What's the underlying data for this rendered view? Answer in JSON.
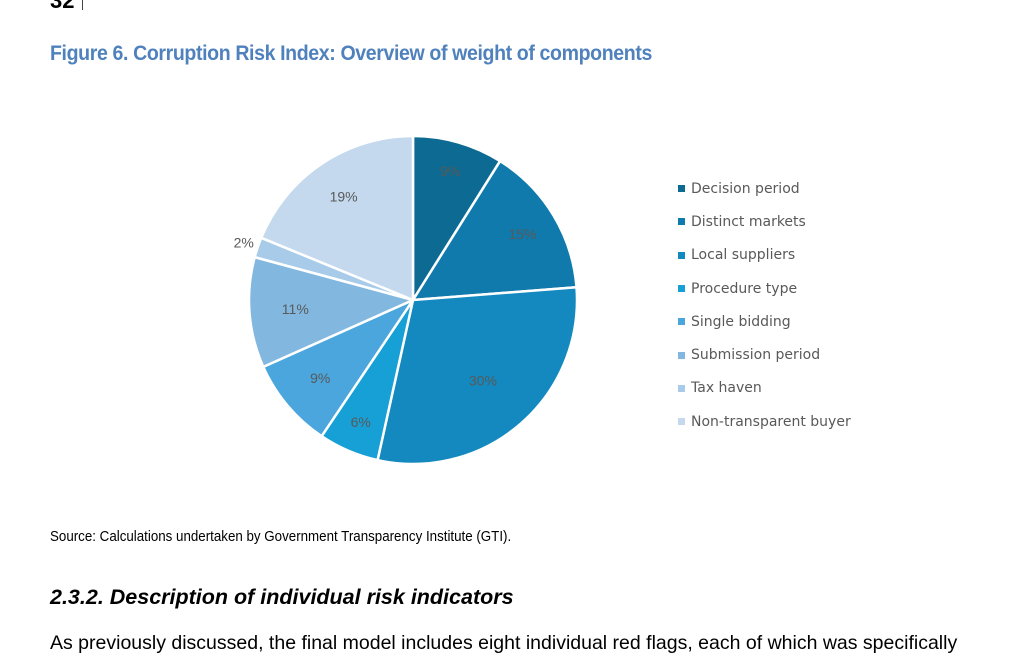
{
  "page": {
    "number": "32",
    "figure_title": "Figure 6. Corruption Risk Index: Overview of weight of components",
    "source": "Source: Calculations undertaken by Government Transparency Institute (GTI).",
    "section_heading": "2.3.2. Description of individual risk indicators",
    "body_text": "As previously discussed, the final model includes eight individual red flags, each of which was specifically"
  },
  "chart_data": {
    "type": "pie",
    "title": "",
    "categories": [
      "Decision period",
      "Distinct markets",
      "Local suppliers",
      "Procedure type",
      "Single bidding",
      "Submission period",
      "Tax haven",
      "Non-transparent buyer"
    ],
    "values": [
      9,
      15,
      30,
      6,
      9,
      11,
      2,
      19
    ],
    "data_labels": [
      "9%",
      "15%",
      "30%",
      "6%",
      "9%",
      "11%",
      "2%",
      "19%"
    ],
    "colors": [
      "#0d6a92",
      "#0f7aab",
      "#1489bf",
      "#17a0d6",
      "#4aa6dc",
      "#82b8e0",
      "#a7cbe9",
      "#c4d9ee"
    ],
    "legend_position": "right"
  }
}
